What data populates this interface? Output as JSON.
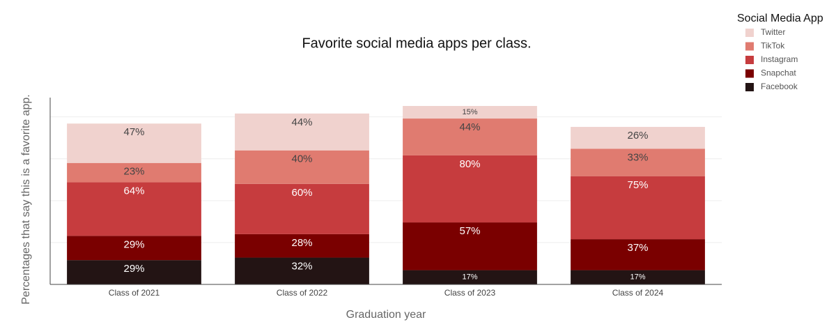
{
  "chart_data": {
    "type": "stacked_bar",
    "title": "Favorite social media apps per class.",
    "x_label": "Graduation year",
    "y_label": "Percentages that say this is a favorite app.",
    "legend_title": "Social Media App",
    "categories": [
      "Class of 2021",
      "Class of 2022",
      "Class of 2023",
      "Class of 2024"
    ],
    "series": [
      {
        "name": "Facebook",
        "color": "#231414",
        "values": [
          29,
          32,
          17,
          17
        ],
        "value_labels": [
          "29%",
          "32%",
          "17%",
          "17%"
        ]
      },
      {
        "name": "Snapchat",
        "color": "#7a0000",
        "values": [
          29,
          28,
          57,
          37
        ],
        "value_labels": [
          "29%",
          "28%",
          "57%",
          "37%"
        ]
      },
      {
        "name": "Instagram",
        "color": "#c63c3e",
        "values": [
          64,
          60,
          80,
          75
        ],
        "value_labels": [
          "64%",
          "60%",
          "80%",
          "75%"
        ]
      },
      {
        "name": "TikTok",
        "color": "#e07b70",
        "values": [
          23,
          40,
          44,
          33
        ],
        "value_labels": [
          "23%",
          "40%",
          "44%",
          "33%"
        ]
      },
      {
        "name": "Twitter",
        "color": "#f0d2ce",
        "values": [
          47,
          44,
          15,
          26
        ],
        "value_labels": [
          "47%",
          "44%",
          "15%",
          "26%"
        ]
      }
    ],
    "ylim": [
      0,
      223
    ],
    "yticks": [
      0,
      50,
      100,
      150,
      200
    ],
    "grid": true,
    "legend_position": "top-right"
  }
}
